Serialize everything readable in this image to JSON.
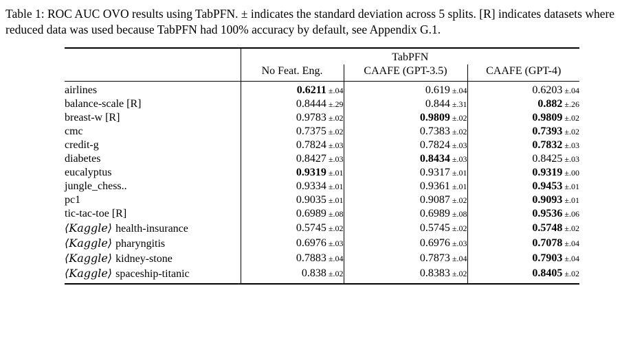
{
  "caption": "Table 1: ROC AUC OVO results using TabPFN. ± indicates the standard deviation across 5 splits. [R] indicates datasets where reduced data was used because TabPFN had 100% accuracy by default, see Appendix G.1.",
  "table": {
    "group_header": "TabPFN",
    "columns": [
      "No Feat. Eng.",
      "CAAFE (GPT-3.5)",
      "CAAFE (GPT-4)"
    ],
    "rows": [
      {
        "prefix": "",
        "dataset": "airlines",
        "cells": [
          {
            "value": "0.6211",
            "std": "±.04",
            "bold": true
          },
          {
            "value": "0.619",
            "std": "±.04",
            "bold": false
          },
          {
            "value": "0.6203",
            "std": "±.04",
            "bold": false
          }
        ]
      },
      {
        "prefix": "",
        "dataset": "balance-scale [R]",
        "cells": [
          {
            "value": "0.8444",
            "std": "±.29",
            "bold": false
          },
          {
            "value": "0.844",
            "std": "±.31",
            "bold": false
          },
          {
            "value": "0.882",
            "std": "±.26",
            "bold": true
          }
        ]
      },
      {
        "prefix": "",
        "dataset": "breast-w [R]",
        "cells": [
          {
            "value": "0.9783",
            "std": "±.02",
            "bold": false
          },
          {
            "value": "0.9809",
            "std": "±.02",
            "bold": true
          },
          {
            "value": "0.9809",
            "std": "±.02",
            "bold": true
          }
        ]
      },
      {
        "prefix": "",
        "dataset": "cmc",
        "cells": [
          {
            "value": "0.7375",
            "std": "±.02",
            "bold": false
          },
          {
            "value": "0.7383",
            "std": "±.02",
            "bold": false
          },
          {
            "value": "0.7393",
            "std": "±.02",
            "bold": true
          }
        ]
      },
      {
        "prefix": "",
        "dataset": "credit-g",
        "cells": [
          {
            "value": "0.7824",
            "std": "±.03",
            "bold": false
          },
          {
            "value": "0.7824",
            "std": "±.03",
            "bold": false
          },
          {
            "value": "0.7832",
            "std": "±.03",
            "bold": true
          }
        ]
      },
      {
        "prefix": "",
        "dataset": "diabetes",
        "cells": [
          {
            "value": "0.8427",
            "std": "±.03",
            "bold": false
          },
          {
            "value": "0.8434",
            "std": "±.03",
            "bold": true
          },
          {
            "value": "0.8425",
            "std": "±.03",
            "bold": false
          }
        ]
      },
      {
        "prefix": "",
        "dataset": "eucalyptus",
        "cells": [
          {
            "value": "0.9319",
            "std": "±.01",
            "bold": true
          },
          {
            "value": "0.9317",
            "std": "±.01",
            "bold": false
          },
          {
            "value": "0.9319",
            "std": "±.00",
            "bold": true
          }
        ]
      },
      {
        "prefix": "",
        "dataset": "jungle_chess..",
        "cells": [
          {
            "value": "0.9334",
            "std": "±.01",
            "bold": false
          },
          {
            "value": "0.9361",
            "std": "±.01",
            "bold": false
          },
          {
            "value": "0.9453",
            "std": "±.01",
            "bold": true
          }
        ]
      },
      {
        "prefix": "",
        "dataset": "pc1",
        "cells": [
          {
            "value": "0.9035",
            "std": "±.01",
            "bold": false
          },
          {
            "value": "0.9087",
            "std": "±.02",
            "bold": false
          },
          {
            "value": "0.9093",
            "std": "±.01",
            "bold": true
          }
        ]
      },
      {
        "prefix": "",
        "dataset": "tic-tac-toe [R]",
        "cells": [
          {
            "value": "0.6989",
            "std": "±.08",
            "bold": false
          },
          {
            "value": "0.6989",
            "std": "±.08",
            "bold": false
          },
          {
            "value": "0.9536",
            "std": "±.06",
            "bold": true
          }
        ]
      },
      {
        "prefix": "⟨Kaggle⟩",
        "dataset": "health-insurance",
        "cells": [
          {
            "value": "0.5745",
            "std": "±.02",
            "bold": false
          },
          {
            "value": "0.5745",
            "std": "±.02",
            "bold": false
          },
          {
            "value": "0.5748",
            "std": "±.02",
            "bold": true
          }
        ]
      },
      {
        "prefix": "⟨Kaggle⟩",
        "dataset": "pharyngitis",
        "cells": [
          {
            "value": "0.6976",
            "std": "±.03",
            "bold": false
          },
          {
            "value": "0.6976",
            "std": "±.03",
            "bold": false
          },
          {
            "value": "0.7078",
            "std": "±.04",
            "bold": true
          }
        ]
      },
      {
        "prefix": "⟨Kaggle⟩",
        "dataset": "kidney-stone",
        "cells": [
          {
            "value": "0.7883",
            "std": "±.04",
            "bold": false
          },
          {
            "value": "0.7873",
            "std": "±.04",
            "bold": false
          },
          {
            "value": "0.7903",
            "std": "±.04",
            "bold": true
          }
        ]
      },
      {
        "prefix": "⟨Kaggle⟩",
        "dataset": "spaceship-titanic",
        "cells": [
          {
            "value": "0.838",
            "std": "±.02",
            "bold": false
          },
          {
            "value": "0.8383",
            "std": "±.02",
            "bold": false
          },
          {
            "value": "0.8405",
            "std": "±.02",
            "bold": true
          }
        ]
      }
    ]
  }
}
